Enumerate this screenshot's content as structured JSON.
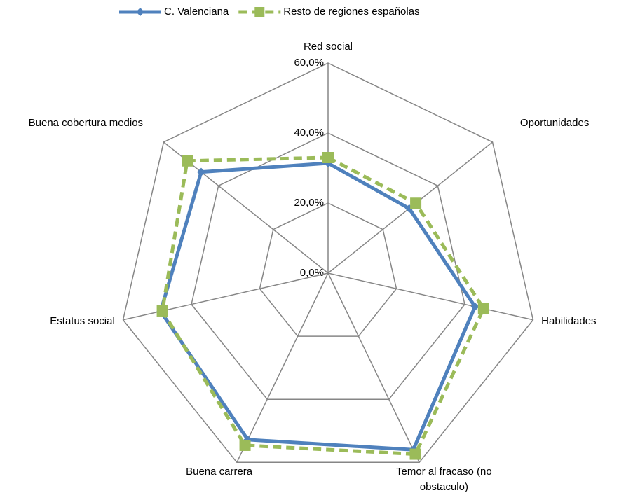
{
  "chart_data": {
    "type": "radar",
    "categories": [
      "Red social",
      "Oportunidades",
      "Habilidades",
      "Temor al fracaso (no obstaculo)",
      "Buena carrera",
      "Estatus social",
      "Buena cobertura medios"
    ],
    "series": [
      {
        "name": "C. Valenciana",
        "color": "#4f81bd",
        "values": [
          31.4,
          29.6,
          43,
          56,
          52.8,
          49,
          46.3
        ]
      },
      {
        "name": "Resto de regiones españolas",
        "color": "#9bbb59",
        "values": [
          33,
          32,
          45.5,
          57.4,
          54.6,
          48.5,
          51.4
        ]
      }
    ],
    "ylim": [
      0,
      60
    ],
    "yticks": [
      {
        "value": 0,
        "label": "0,0%"
      },
      {
        "value": 20,
        "label": "20,0%"
      },
      {
        "value": 40,
        "label": "40,0%"
      },
      {
        "value": 60,
        "label": "60,0%"
      }
    ],
    "grid": true
  }
}
